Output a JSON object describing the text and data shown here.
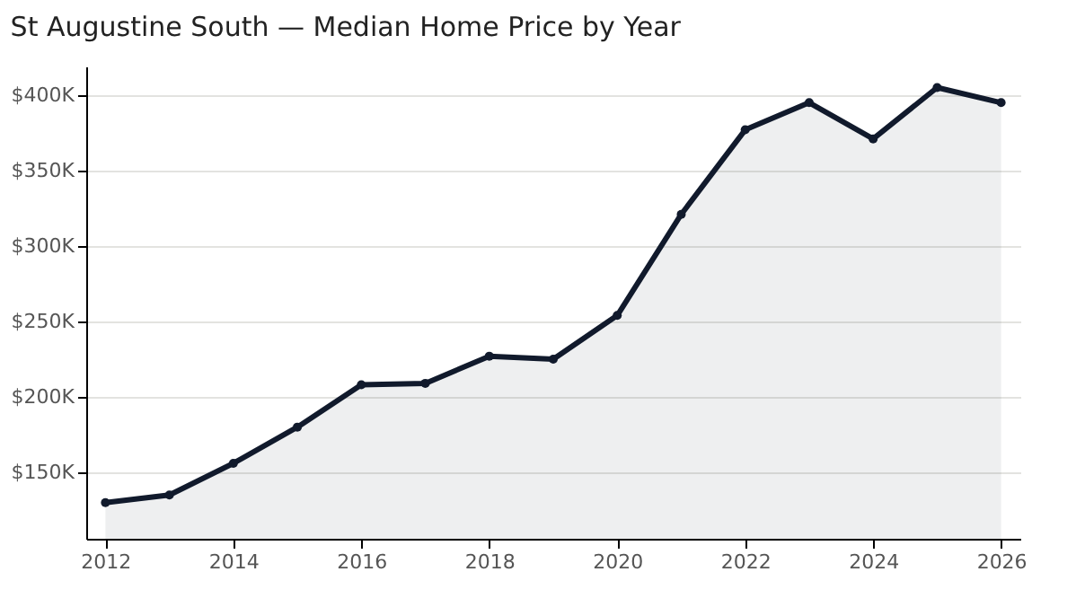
{
  "chart_data": {
    "type": "area",
    "title": "St Augustine South — Median Home Price by Year",
    "x": [
      2012,
      2013,
      2014,
      2015,
      2016,
      2017,
      2018,
      2019,
      2020,
      2021,
      2022,
      2023,
      2024,
      2025,
      2026
    ],
    "series": [
      {
        "color": "#111a2c",
        "values": [
          130000,
          135000,
          156000,
          180000,
          208000,
          209000,
          227000,
          225000,
          254000,
          321000,
          377000,
          395000,
          371000,
          405000,
          395000
        ]
      }
    ],
    "xlim": [
      2011.7,
      2026.3
    ],
    "xticks": [
      2012,
      2014,
      2016,
      2018,
      2020,
      2022,
      2024,
      2026
    ],
    "ylim": [
      106000,
      419000
    ],
    "yticks": [
      {
        "value": 150000,
        "label": "$150K"
      },
      {
        "value": 200000,
        "label": "$200K"
      },
      {
        "value": 250000,
        "label": "$250K"
      },
      {
        "value": 300000,
        "label": "$300K"
      },
      {
        "value": 350000,
        "label": "$350K"
      },
      {
        "value": 400000,
        "label": "$400K"
      }
    ],
    "grid": "y",
    "marker": "circle",
    "line_style": "solid"
  }
}
